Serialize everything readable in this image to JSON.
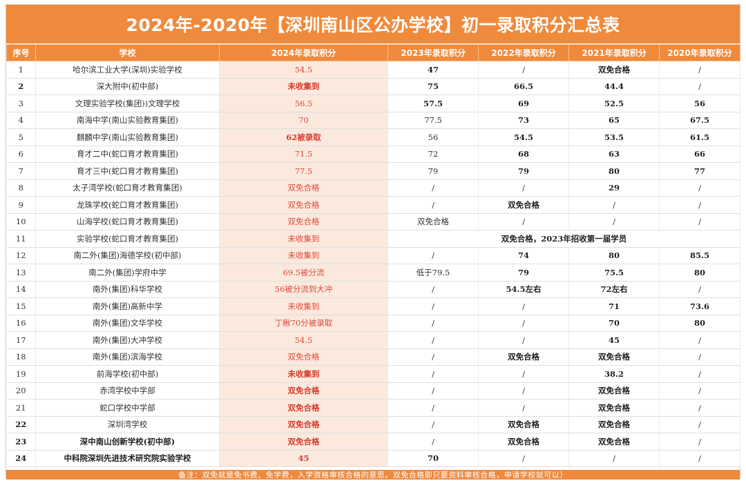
{
  "title": "2024年-2020年【深圳南山区公办学校】初一录取积分汇总表",
  "headers": [
    "序号",
    "学校",
    "2024年录取积分",
    "2023年录取积分",
    "2022年录取积分",
    "2021年录取积分",
    "2020年录取积分"
  ],
  "rows": [
    {
      "no": "1",
      "school": "哈尔滨工业大学(深圳)实验学校",
      "y2024": "54.5",
      "y2023": "47",
      "y2022": "/",
      "y2021": "双免合格",
      "y2020": "/",
      "b": [
        false,
        false,
        false,
        true,
        false,
        true,
        false
      ]
    },
    {
      "no": "2",
      "school": "深大附中(初中部)",
      "y2024": "未收集到",
      "y2023": "75",
      "y2022": "66.5",
      "y2021": "44.4",
      "y2020": "/",
      "b": [
        true,
        false,
        true,
        true,
        true,
        true,
        false
      ]
    },
    {
      "no": "3",
      "school": "文理实验学校(集团))文理学校",
      "y2024": "56.5",
      "y2023": "57.5",
      "y2022": "69",
      "y2021": "52.5",
      "y2020": "56",
      "b": [
        false,
        false,
        false,
        true,
        true,
        true,
        true
      ]
    },
    {
      "no": "4",
      "school": "南海中学(南山实验教育集团)",
      "y2024": "70",
      "y2023": "77.5",
      "y2022": "73",
      "y2021": "65",
      "y2020": "67.5",
      "b": [
        false,
        false,
        false,
        false,
        true,
        true,
        true
      ]
    },
    {
      "no": "5",
      "school": "麒麟中学(南山实验教育集团)",
      "y2024": "62被录取",
      "y2023": "56",
      "y2022": "54.5",
      "y2021": "53.5",
      "y2020": "61.5",
      "b": [
        false,
        false,
        true,
        false,
        true,
        true,
        true
      ]
    },
    {
      "no": "6",
      "school": "育才二中(蛇口育才教育集团)",
      "y2024": "71.5",
      "y2023": "72",
      "y2022": "68",
      "y2021": "63",
      "y2020": "66",
      "b": [
        false,
        false,
        false,
        false,
        true,
        true,
        true
      ]
    },
    {
      "no": "7",
      "school": "育才三中(蛇口育才教育集团)",
      "y2024": "77.5",
      "y2023": "79",
      "y2022": "79",
      "y2021": "80",
      "y2020": "77",
      "b": [
        false,
        false,
        false,
        false,
        true,
        true,
        true
      ]
    },
    {
      "no": "8",
      "school": "太子湾学校(蛇口育才教育集团)",
      "y2024": "双免合格",
      "y2023": "/",
      "y2022": "/",
      "y2021": "29",
      "y2020": "/",
      "b": [
        false,
        false,
        false,
        false,
        false,
        true,
        false
      ]
    },
    {
      "no": "9",
      "school": "龙珠学校(蛇口育才教育集团)",
      "y2024": "双免合格",
      "y2023": "/",
      "y2022": "双免合格",
      "y2021": "/",
      "y2020": "/",
      "b": [
        false,
        false,
        false,
        false,
        true,
        false,
        false
      ]
    },
    {
      "no": "10",
      "school": "山海学校(蛇口育才教育集团)",
      "y2024": "双免合格",
      "y2023": "双免合格",
      "y2022": "/",
      "y2021": "/",
      "y2020": "/",
      "b": [
        false,
        false,
        false,
        false,
        false,
        false,
        false
      ]
    },
    {
      "no": "11",
      "school": "实验学校(蛇口育才教育集团)",
      "y2024": "未收集到",
      "merged": "双免合格，2023年招收第一届学员",
      "b": [
        false,
        false,
        false,
        true,
        true,
        true,
        true
      ]
    },
    {
      "no": "12",
      "school": "南二外(集团)海德学校(初中部)",
      "y2024": "未收集到",
      "y2023": "/",
      "y2022": "74",
      "y2021": "80",
      "y2020": "85.5",
      "b": [
        false,
        false,
        false,
        false,
        true,
        true,
        true
      ]
    },
    {
      "no": "13",
      "school": "南二外(集团)学府中学",
      "y2024": "69.5被分流",
      "y2023": "低于79.5",
      "y2022": "79",
      "y2021": "75.5",
      "y2020": "80",
      "b": [
        false,
        false,
        false,
        false,
        true,
        true,
        true
      ]
    },
    {
      "no": "14",
      "school": "南外(集团)科华学校",
      "y2024": "56被分流到大冲",
      "y2023": "/",
      "y2022": "54.5左右",
      "y2021": "72左右",
      "y2020": "/",
      "b": [
        false,
        false,
        false,
        false,
        true,
        true,
        false
      ]
    },
    {
      "no": "15",
      "school": "南外(集团)高新中学",
      "y2024": "未收集到",
      "y2023": "/",
      "y2022": "/",
      "y2021": "71",
      "y2020": "73.6",
      "b": [
        false,
        false,
        false,
        false,
        false,
        true,
        true
      ]
    },
    {
      "no": "16",
      "school": "南外(集团)文华学校",
      "y2024": "丁楸70分被录取",
      "y2023": "/",
      "y2022": "/",
      "y2021": "70",
      "y2020": "80",
      "b": [
        false,
        false,
        false,
        false,
        false,
        true,
        true
      ]
    },
    {
      "no": "17",
      "school": "南外(集团)大冲学校",
      "y2024": "54.5",
      "y2023": "/",
      "y2022": "/",
      "y2021": "45",
      "y2020": "/",
      "b": [
        false,
        false,
        false,
        false,
        false,
        true,
        false
      ]
    },
    {
      "no": "18",
      "school": "南外(集团)滨海学校",
      "y2024": "双免合格",
      "y2023": "/",
      "y2022": "双免合格",
      "y2021": "双免合格",
      "y2020": "/",
      "b": [
        false,
        false,
        false,
        false,
        true,
        true,
        false
      ]
    },
    {
      "no": "19",
      "school": "前海学校(初中部)",
      "y2024": "未收集到",
      "y2023": "/",
      "y2022": "/",
      "y2021": "38.2",
      "y2020": "/",
      "b": [
        false,
        false,
        true,
        false,
        false,
        true,
        false
      ]
    },
    {
      "no": "20",
      "school": "赤湾学校中学部",
      "y2024": "双免合格",
      "y2023": "/",
      "y2022": "/",
      "y2021": "双免合格",
      "y2020": "/",
      "b": [
        false,
        false,
        true,
        false,
        false,
        true,
        false
      ]
    },
    {
      "no": "21",
      "school": "蛇口学校中学部",
      "y2024": "双免合格",
      "y2023": "/",
      "y2022": "/",
      "y2021": "双免合格",
      "y2020": "/",
      "b": [
        false,
        false,
        true,
        false,
        false,
        true,
        false
      ]
    },
    {
      "no": "22",
      "school": "深圳湾学校",
      "y2024": "双免合格",
      "y2023": "/",
      "y2022": "双免合格",
      "y2021": "双免合格",
      "y2020": "/",
      "b": [
        true,
        false,
        true,
        false,
        true,
        true,
        false
      ]
    },
    {
      "no": "23",
      "school": "深中南山创新学校(初中部)",
      "y2024": "双免合格",
      "y2023": "/",
      "y2022": "双免合格",
      "y2021": "双免合格",
      "y2020": "/",
      "b": [
        true,
        true,
        true,
        false,
        true,
        true,
        false
      ]
    },
    {
      "no": "24",
      "school": "中科院深圳先进技术研究院实验学校",
      "y2024": "45",
      "y2023": "70",
      "y2022": "/",
      "y2021": "/",
      "y2020": "/",
      "b": [
        true,
        true,
        true,
        true,
        false,
        false,
        false
      ]
    }
  ],
  "footer": "备注：双免就是免书费、免学费，入学资格审核合格的意思。双免合格即只要资料审核合格，申请学校就可以）"
}
